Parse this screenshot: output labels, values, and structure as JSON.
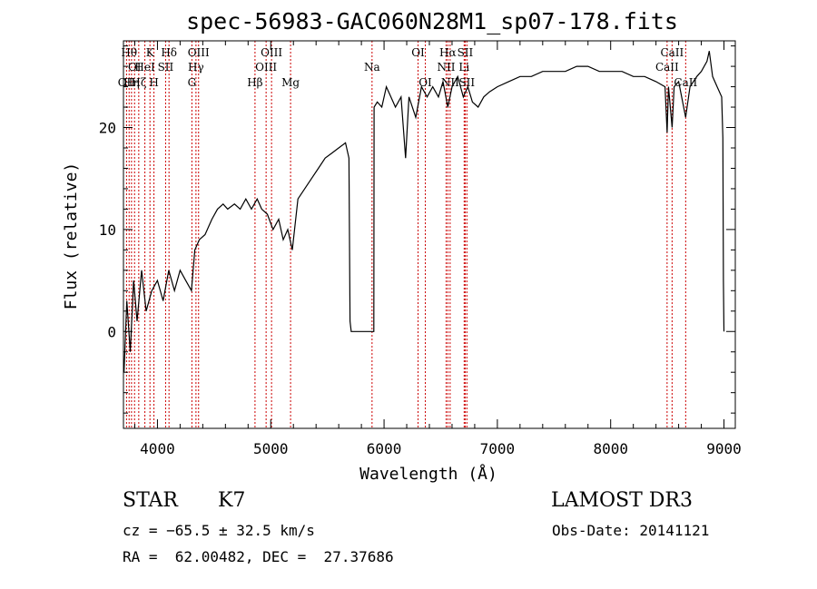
{
  "chart_data": {
    "type": "line",
    "title": "spec-56983-GAC060N28M1_sp07-178.fits",
    "xlabel": "Wavelength (Å)",
    "ylabel": "Flux (relative)",
    "xlim": [
      3700,
      9100
    ],
    "ylim": [
      -9.5,
      28.5
    ],
    "x_ticks": [
      4000,
      5000,
      6000,
      7000,
      8000,
      9000
    ],
    "y_ticks": [
      0,
      10,
      20
    ],
    "series": [
      {
        "name": "spectrum",
        "points": [
          [
            3705,
            -4
          ],
          [
            3730,
            3
          ],
          [
            3760,
            -2
          ],
          [
            3790,
            5
          ],
          [
            3820,
            1
          ],
          [
            3860,
            6
          ],
          [
            3900,
            2
          ],
          [
            3950,
            4
          ],
          [
            4000,
            5
          ],
          [
            4050,
            3
          ],
          [
            4100,
            6
          ],
          [
            4150,
            4
          ],
          [
            4200,
            6
          ],
          [
            4250,
            5
          ],
          [
            4300,
            4
          ],
          [
            4330,
            8
          ],
          [
            4370,
            9
          ],
          [
            4420,
            9.5
          ],
          [
            4480,
            11
          ],
          [
            4530,
            12
          ],
          [
            4580,
            12.5
          ],
          [
            4620,
            12
          ],
          [
            4680,
            12.5
          ],
          [
            4730,
            12
          ],
          [
            4780,
            13
          ],
          [
            4830,
            12
          ],
          [
            4880,
            13
          ],
          [
            4920,
            12
          ],
          [
            4970,
            11.5
          ],
          [
            5020,
            10
          ],
          [
            5070,
            11
          ],
          [
            5110,
            9
          ],
          [
            5150,
            10
          ],
          [
            5190,
            8
          ],
          [
            5240,
            13
          ],
          [
            5300,
            14
          ],
          [
            5360,
            15
          ],
          [
            5420,
            16
          ],
          [
            5480,
            17
          ],
          [
            5540,
            17.5
          ],
          [
            5600,
            18
          ],
          [
            5660,
            18.5
          ],
          [
            5690,
            17
          ],
          [
            5700,
            1
          ],
          [
            5710,
            0
          ],
          [
            5800,
            0
          ],
          [
            5910,
            0
          ],
          [
            5912,
            22
          ],
          [
            5940,
            22.5
          ],
          [
            5980,
            22
          ],
          [
            6020,
            24
          ],
          [
            6060,
            23
          ],
          [
            6100,
            22
          ],
          [
            6150,
            23
          ],
          [
            6190,
            17
          ],
          [
            6220,
            23
          ],
          [
            6280,
            21
          ],
          [
            6330,
            24
          ],
          [
            6380,
            23
          ],
          [
            6430,
            24
          ],
          [
            6480,
            23
          ],
          [
            6520,
            24.5
          ],
          [
            6563,
            22
          ],
          [
            6600,
            24
          ],
          [
            6650,
            25
          ],
          [
            6700,
            23
          ],
          [
            6740,
            24
          ],
          [
            6780,
            22.5
          ],
          [
            6830,
            22
          ],
          [
            6880,
            23
          ],
          [
            6930,
            23.5
          ],
          [
            7000,
            24
          ],
          [
            7100,
            24.5
          ],
          [
            7200,
            25
          ],
          [
            7300,
            25
          ],
          [
            7400,
            25.5
          ],
          [
            7500,
            25.5
          ],
          [
            7600,
            25.5
          ],
          [
            7700,
            26
          ],
          [
            7800,
            26
          ],
          [
            7900,
            25.5
          ],
          [
            8000,
            25.5
          ],
          [
            8100,
            25.5
          ],
          [
            8200,
            25
          ],
          [
            8300,
            25
          ],
          [
            8400,
            24.5
          ],
          [
            8480,
            24
          ],
          [
            8498,
            19.5
          ],
          [
            8510,
            24
          ],
          [
            8542,
            20
          ],
          [
            8560,
            24
          ],
          [
            8600,
            24.5
          ],
          [
            8662,
            21
          ],
          [
            8700,
            24
          ],
          [
            8760,
            25
          ],
          [
            8800,
            25.5
          ],
          [
            8850,
            26.5
          ],
          [
            8870,
            27.5
          ],
          [
            8900,
            25
          ],
          [
            8940,
            24
          ],
          [
            8980,
            23
          ],
          [
            8990,
            19
          ],
          [
            8995,
            5
          ],
          [
            9000,
            0
          ]
        ]
      }
    ],
    "line_markers": [
      {
        "x": 3727,
        "label": "OII",
        "row": 2
      },
      {
        "x": 3750,
        "label": "Hθ",
        "row": 0
      },
      {
        "x": 3771,
        "label": "Hη",
        "row": 2
      },
      {
        "x": 3798,
        "label": "OI",
        "row": 1
      },
      {
        "x": 3835,
        "label": "Hζ",
        "row": 2
      },
      {
        "x": 3889,
        "label": "HeI",
        "row": 1
      },
      {
        "x": 3934,
        "label": "K",
        "row": 0
      },
      {
        "x": 3969,
        "label": "H",
        "row": 2
      },
      {
        "x": 4072,
        "label": "SII",
        "row": 1
      },
      {
        "x": 4102,
        "label": "Hδ",
        "row": 0
      },
      {
        "x": 4304,
        "label": "G",
        "row": 2
      },
      {
        "x": 4340,
        "label": "Hγ",
        "row": 1
      },
      {
        "x": 4363,
        "label": "OIII",
        "row": 0
      },
      {
        "x": 4861,
        "label": "Hβ",
        "row": 2
      },
      {
        "x": 4959,
        "label": "OIII",
        "row": 1
      },
      {
        "x": 5007,
        "label": "OIII",
        "row": 0
      },
      {
        "x": 5175,
        "label": "Mg",
        "row": 2
      },
      {
        "x": 5894,
        "label": "Na",
        "row": 1
      },
      {
        "x": 6300,
        "label": "OI",
        "row": 0
      },
      {
        "x": 6364,
        "label": "OI",
        "row": 2
      },
      {
        "x": 6548,
        "label": "NII",
        "row": 1
      },
      {
        "x": 6563,
        "label": "Hα",
        "row": 0
      },
      {
        "x": 6583,
        "label": "NII",
        "row": 2
      },
      {
        "x": 6707,
        "label": "Li",
        "row": 1
      },
      {
        "x": 6716,
        "label": "SII",
        "row": 0
      },
      {
        "x": 6731,
        "label": "SII",
        "row": 2
      },
      {
        "x": 8498,
        "label": "CaII",
        "row": 1
      },
      {
        "x": 8542,
        "label": "CaII",
        "row": 0
      },
      {
        "x": 8662,
        "label": "CaII",
        "row": 2
      }
    ]
  },
  "info": {
    "object_class": "STAR",
    "subclass": "K7",
    "survey": "LAMOST DR3",
    "cz": "cz = −65.5 ± 32.5 km/s",
    "obs_date": "Obs-Date: 20141121",
    "coords": "RA =  62.00482, DEC =  27.37686"
  },
  "colors": {
    "spectrum": "#000000",
    "marker_line": "#cc0000",
    "background": "#ffffff"
  }
}
